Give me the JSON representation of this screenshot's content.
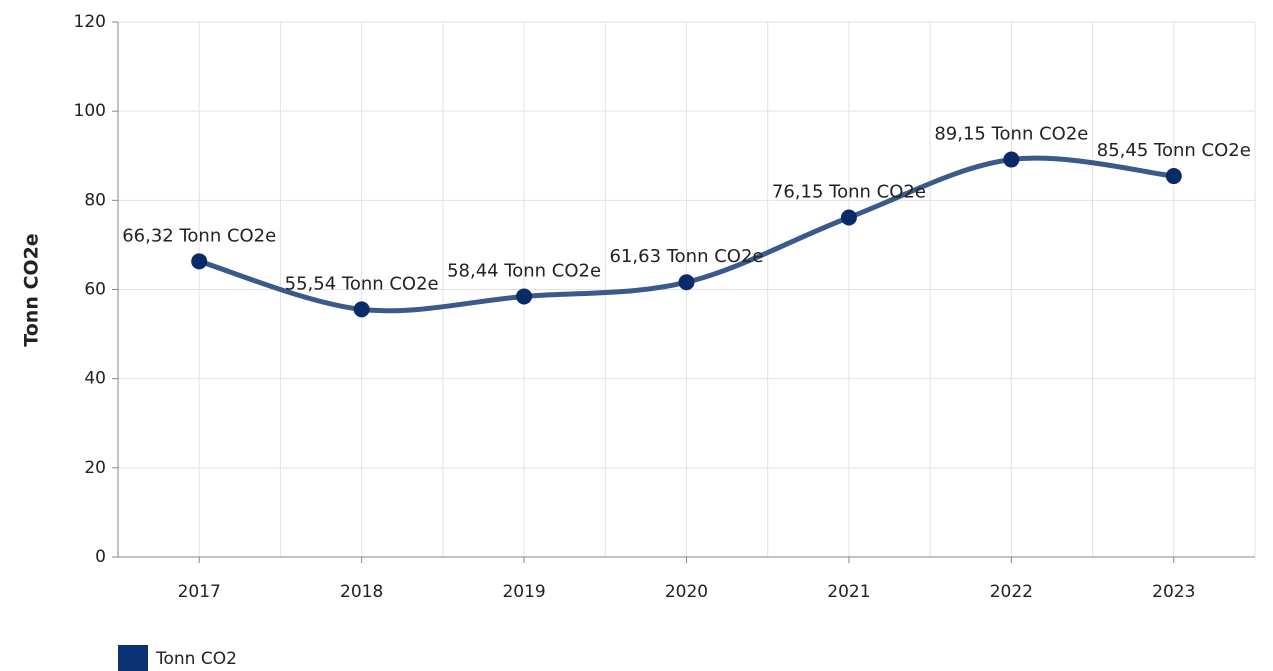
{
  "chart_data": {
    "type": "line",
    "y_label": "Tonn CO2e",
    "categories": [
      "2017",
      "2018",
      "2019",
      "2020",
      "2021",
      "2022",
      "2023"
    ],
    "series": [
      {
        "name": "Tonn CO2",
        "color": "#3b5a8c",
        "marker_color": "#0b2b68",
        "legend_color": "#0b3274",
        "values": [
          66.32,
          55.54,
          58.44,
          61.63,
          76.15,
          89.15,
          85.45
        ],
        "value_labels": [
          "66,32 Tonn CO2e",
          "55,54 Tonn CO2e",
          "58,44 Tonn CO2e",
          "61,63 Tonn CO2e",
          "76,15 Tonn CO2e",
          "89,15 Tonn CO2e",
          "85,45 Tonn CO2e"
        ]
      }
    ],
    "ylim": [
      0,
      120
    ],
    "yticks": [
      0,
      20,
      40,
      60,
      80,
      100,
      120
    ],
    "grid": true
  }
}
